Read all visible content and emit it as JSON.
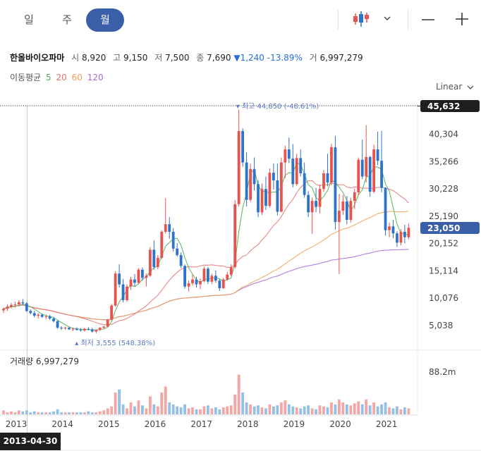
{
  "toolbar": {
    "tabs": [
      {
        "label": "일",
        "active": false
      },
      {
        "label": "주",
        "active": false
      },
      {
        "label": "월",
        "active": true
      }
    ],
    "chart_type_icon": "candlestick-icon",
    "dropdown_icon": "chevron-down-icon",
    "zoom_out_icon": "minus-icon",
    "zoom_in_icon": "plus-icon"
  },
  "stock": {
    "name": "한올바이오파마",
    "open_label": "시",
    "open": "8,920",
    "high_label": "고",
    "high": "9,150",
    "low_label": "저",
    "low": "7,500",
    "close_label": "종",
    "close": "7,690",
    "change": "▼1,240 -13.89%",
    "volume_label": "거",
    "volume": "6,997,279"
  },
  "moving_average": {
    "label": "이동평균",
    "periods": [
      "5",
      "20",
      "60",
      "120"
    ],
    "colors": [
      "#4caf50",
      "#e57373",
      "#f0a050",
      "#a66bd8"
    ]
  },
  "scale_label": "Linear",
  "colors": {
    "up": "#e8524f",
    "down": "#2e74c9",
    "accent": "#3a5ea8",
    "volume_up": "#f4a6a4",
    "volume_down": "#93c0e6"
  },
  "markers": {
    "high_text": "최고 44,850 (-48.61%)",
    "low_text": "최저 3,555 (548.38%)"
  },
  "badges": {
    "top_price": "45,632",
    "last_price": "23,050"
  },
  "volume_panel": {
    "title": "거래량 6,997,279",
    "max_label": "88.2m"
  },
  "crosshair_date": "2013-04-30",
  "chart_data": {
    "type": "candlestick",
    "y_ticks": [
      "40,304",
      "35,266",
      "30,228",
      "25,190",
      "20,152",
      "15,114",
      "10,076",
      "5,038"
    ],
    "x_ticks": [
      "2013",
      "2014",
      "2015",
      "2016",
      "2017",
      "2018",
      "2019",
      "2020",
      "2021"
    ],
    "ylim": [
      0,
      46000
    ],
    "candles": [
      [
        7800,
        8300,
        7300,
        8100
      ],
      [
        8100,
        8900,
        7700,
        8500
      ],
      [
        8500,
        9200,
        8200,
        8800
      ],
      [
        8800,
        9400,
        8300,
        8900
      ],
      [
        8900,
        9700,
        8500,
        9300
      ],
      [
        9300,
        9900,
        8800,
        9100
      ],
      [
        9100,
        9300,
        7500,
        7700
      ],
      [
        7700,
        8000,
        7100,
        7300
      ],
      [
        7300,
        7700,
        6500,
        6800
      ],
      [
        6800,
        7300,
        6300,
        7000
      ],
      [
        7000,
        7200,
        6400,
        6600
      ],
      [
        6600,
        7000,
        6200,
        6700
      ],
      [
        6700,
        7000,
        6100,
        6300
      ],
      [
        6300,
        6600,
        5600,
        5800
      ],
      [
        5800,
        6000,
        4400,
        4600
      ],
      [
        4600,
        4900,
        4200,
        4500
      ],
      [
        4500,
        4800,
        4200,
        4600
      ],
      [
        4600,
        4800,
        4200,
        4300
      ],
      [
        4300,
        4600,
        4000,
        4400
      ],
      [
        4400,
        4700,
        4100,
        4200
      ],
      [
        4200,
        4500,
        3900,
        4100
      ],
      [
        4100,
        4600,
        3900,
        4400
      ],
      [
        4400,
        4700,
        4100,
        4300
      ],
      [
        4300,
        4600,
        3700,
        3900
      ],
      [
        3900,
        4300,
        3555,
        4200
      ],
      [
        4200,
        4700,
        4000,
        4600
      ],
      [
        4600,
        5000,
        4400,
        4800
      ],
      [
        4800,
        6200,
        4700,
        6100
      ],
      [
        6100,
        9000,
        5900,
        8700
      ],
      [
        8700,
        15000,
        8500,
        14600
      ],
      [
        14600,
        16300,
        12000,
        12600
      ],
      [
        12600,
        13600,
        9300,
        9700
      ],
      [
        9700,
        12600,
        9400,
        12200
      ],
      [
        12200,
        14000,
        11600,
        13500
      ],
      [
        13500,
        14500,
        12300,
        12900
      ],
      [
        12900,
        15600,
        12600,
        15300
      ],
      [
        15300,
        15700,
        13300,
        13800
      ],
      [
        13800,
        14600,
        12200,
        14200
      ],
      [
        14200,
        19500,
        14000,
        19000
      ],
      [
        19000,
        20700,
        15300,
        15800
      ],
      [
        15800,
        18000,
        15400,
        17500
      ],
      [
        17500,
        22600,
        17300,
        22300
      ],
      [
        22300,
        28500,
        22000,
        23700
      ],
      [
        23700,
        25000,
        21000,
        22300
      ],
      [
        22300,
        23000,
        18700,
        19200
      ],
      [
        19200,
        20200,
        17700,
        18000
      ],
      [
        18000,
        18500,
        15600,
        16000
      ],
      [
        16000,
        16300,
        11800,
        12200
      ],
      [
        12200,
        13300,
        11300,
        12800
      ],
      [
        12800,
        14400,
        12400,
        13500
      ],
      [
        13500,
        14000,
        12000,
        12600
      ],
      [
        12600,
        13700,
        11700,
        13200
      ],
      [
        13200,
        15900,
        13000,
        15500
      ],
      [
        15500,
        15800,
        12700,
        13100
      ],
      [
        13100,
        14600,
        12700,
        14200
      ],
      [
        14200,
        15200,
        12900,
        13300
      ],
      [
        13300,
        13600,
        11400,
        11900
      ],
      [
        11900,
        13800,
        11700,
        13500
      ],
      [
        13500,
        14900,
        13300,
        14400
      ],
      [
        14400,
        16300,
        14100,
        15800
      ],
      [
        15800,
        28200,
        15500,
        27400
      ],
      [
        27400,
        44850,
        27000,
        40900
      ],
      [
        40900,
        41400,
        34300,
        35100
      ],
      [
        35100,
        37000,
        27000,
        28200
      ],
      [
        28200,
        34900,
        27800,
        33900
      ],
      [
        33900,
        36000,
        29900,
        31100
      ],
      [
        31100,
        31800,
        25000,
        25900
      ],
      [
        25900,
        31200,
        25400,
        30200
      ],
      [
        30200,
        32500,
        26300,
        27100
      ],
      [
        27100,
        34000,
        26800,
        33200
      ],
      [
        33200,
        34900,
        30100,
        31800
      ],
      [
        31800,
        34900,
        25300,
        26000
      ],
      [
        26000,
        36000,
        25900,
        35100
      ],
      [
        35100,
        38200,
        32200,
        37500
      ],
      [
        37500,
        39700,
        35000,
        35800
      ],
      [
        35800,
        38500,
        30500,
        31100
      ],
      [
        31100,
        36700,
        30800,
        35900
      ],
      [
        35900,
        37500,
        32500,
        33100
      ],
      [
        33100,
        35100,
        28600,
        29100
      ],
      [
        29100,
        29800,
        25000,
        25900
      ],
      [
        25900,
        28600,
        21900,
        28000
      ],
      [
        28000,
        30400,
        25900,
        26900
      ],
      [
        26900,
        31000,
        25700,
        30200
      ],
      [
        30200,
        33700,
        29700,
        33100
      ],
      [
        33100,
        36700,
        30700,
        31400
      ],
      [
        31400,
        38500,
        30900,
        37900
      ],
      [
        37900,
        40000,
        22700,
        24100
      ],
      [
        24100,
        29300,
        14500,
        26200
      ],
      [
        26200,
        29100,
        25400,
        27900
      ],
      [
        27900,
        28900,
        23700,
        24500
      ],
      [
        24500,
        28600,
        24000,
        28000
      ],
      [
        28000,
        30300,
        26500,
        29600
      ],
      [
        29600,
        36000,
        29000,
        35600
      ],
      [
        35600,
        39300,
        32000,
        32500
      ],
      [
        32500,
        42000,
        31400,
        36100
      ],
      [
        36100,
        36300,
        28800,
        29700
      ],
      [
        29700,
        38400,
        29400,
        37500
      ],
      [
        37500,
        40800,
        34600,
        35400
      ],
      [
        35400,
        40900,
        29600,
        30400
      ],
      [
        30400,
        30500,
        21600,
        22600
      ],
      [
        22600,
        24000,
        21300,
        23300
      ],
      [
        23300,
        24500,
        21100,
        22000
      ],
      [
        22000,
        22400,
        19500,
        20300
      ],
      [
        20300,
        22800,
        19800,
        22300
      ],
      [
        22300,
        23600,
        20200,
        21300
      ],
      [
        21300,
        23800,
        20900,
        23050
      ]
    ],
    "volume": [
      4,
      2,
      3,
      2,
      4,
      3,
      4,
      2,
      3,
      2,
      2,
      2,
      2,
      3,
      5,
      2,
      2,
      2,
      2,
      2,
      2,
      2,
      3,
      2,
      2,
      3,
      4,
      6,
      8,
      22,
      25,
      10,
      6,
      12,
      8,
      14,
      9,
      6,
      18,
      10,
      8,
      22,
      28,
      12,
      10,
      8,
      7,
      10,
      6,
      7,
      5,
      5,
      8,
      9,
      6,
      7,
      5,
      7,
      8,
      9,
      20,
      40,
      22,
      12,
      10,
      8,
      9,
      7,
      6,
      10,
      8,
      9,
      12,
      14,
      10,
      8,
      7,
      6,
      8,
      9,
      6,
      5,
      9,
      8,
      7,
      12,
      10,
      15,
      12,
      10,
      9,
      11,
      13,
      10,
      15,
      9,
      12,
      8,
      10,
      12,
      7,
      6,
      8,
      5,
      7,
      6
    ]
  }
}
